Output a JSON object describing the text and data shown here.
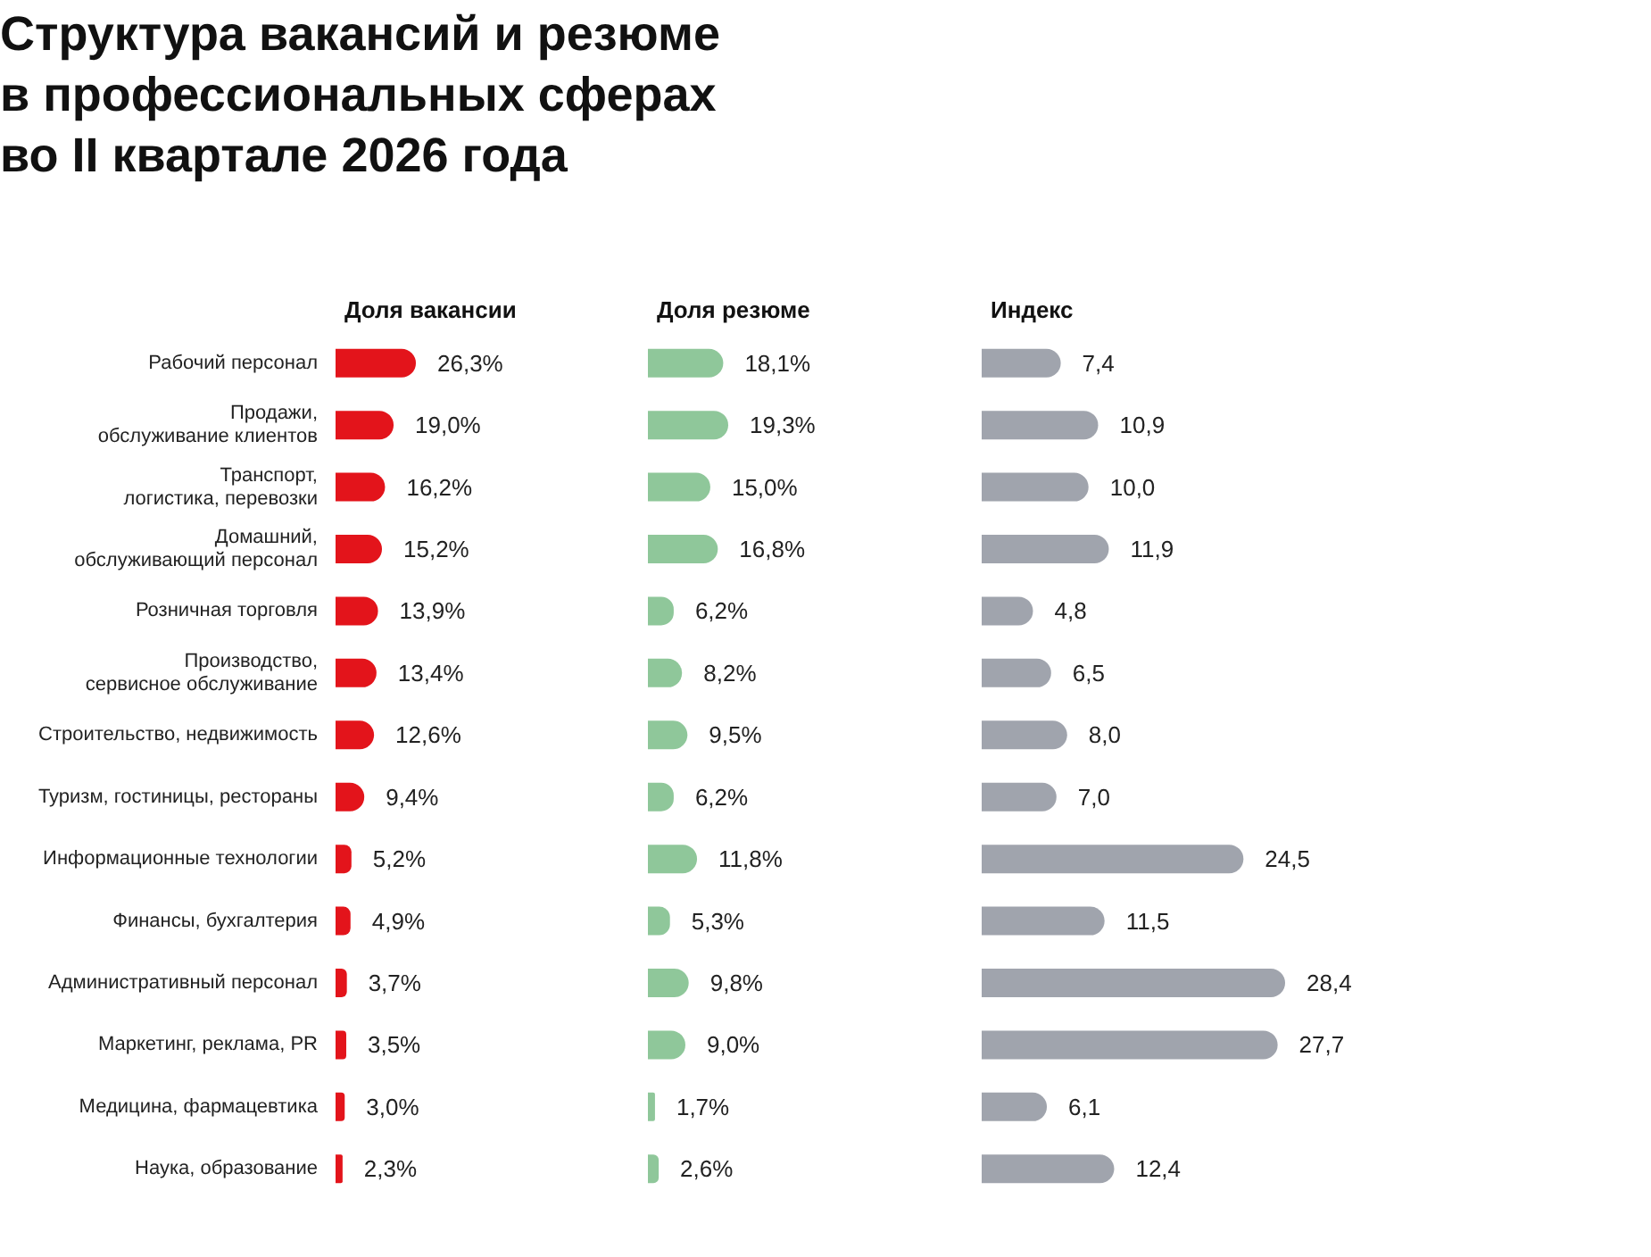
{
  "chart_data": [
    {
      "type": "bar",
      "orientation": "horizontal",
      "title": "Структура вакансий и резюме в профессиональных сферах во II квартале 2026 года",
      "subtitle": "Доля вакансии",
      "tick_labels": "y",
      "color": "#e3141b",
      "categories": [
        "Рабочий персонал",
        "Продажи, обслуживание клиентов",
        "Транспорт, логистика, перевозки",
        "Домашний, обслуживающий персонал",
        "Розничная торговля",
        "Производство, сервисное обслуживание",
        "Строительство, недвижимость",
        "Туризм, гостиницы, рестораны",
        "Информационные технологии",
        "Финансы, бухгалтерия",
        "Административный персонал",
        "Маркетинг, реклама, PR",
        "Медицина, фармацевтика",
        "Наука, образование"
      ],
      "values": [
        26.3,
        19.0,
        16.2,
        15.2,
        13.9,
        13.4,
        12.6,
        9.4,
        5.2,
        4.9,
        3.7,
        3.5,
        3.0,
        2.3
      ],
      "value_labels": [
        "26,3%",
        "19,0%",
        "16,2%",
        "15,2%",
        "13,9%",
        "13,4%",
        "12,6%",
        "9,4%",
        "5,2%",
        "4,9%",
        "3,7%",
        "3,5%",
        "3,0%",
        "2,3%"
      ]
    },
    {
      "type": "bar",
      "orientation": "horizontal",
      "title": "Доля резюме",
      "tick_labels": false,
      "color": "#8fc79a",
      "values": [
        18.1,
        19.3,
        15.0,
        16.8,
        6.2,
        8.2,
        9.5,
        6.2,
        11.8,
        5.3,
        9.8,
        9.0,
        1.7,
        2.6
      ],
      "value_labels": [
        "18,1%",
        "19,3%",
        "15,0%",
        "16,8%",
        "6,2%",
        "8,2%",
        "9,5%",
        "6,2%",
        "11,8%",
        "5,3%",
        "9,8%",
        "9,0%",
        "1,7%",
        "2,6%"
      ]
    },
    {
      "type": "bar",
      "orientation": "horizontal",
      "title": "Индекс",
      "tick_labels": false,
      "color": "#a0a4ad",
      "values": [
        7.4,
        10.9,
        10.0,
        11.9,
        4.8,
        6.5,
        8.0,
        7.0,
        24.5,
        11.5,
        28.4,
        27.7,
        6.1,
        12.4
      ],
      "value_labels": [
        "7,4",
        "10,9",
        "10,0",
        "11,9",
        "4,8",
        "6,5",
        "8,0",
        "7,0",
        "24,5",
        "11,5",
        "28,4",
        "27,7",
        "6,1",
        "12,4"
      ]
    }
  ]
}
